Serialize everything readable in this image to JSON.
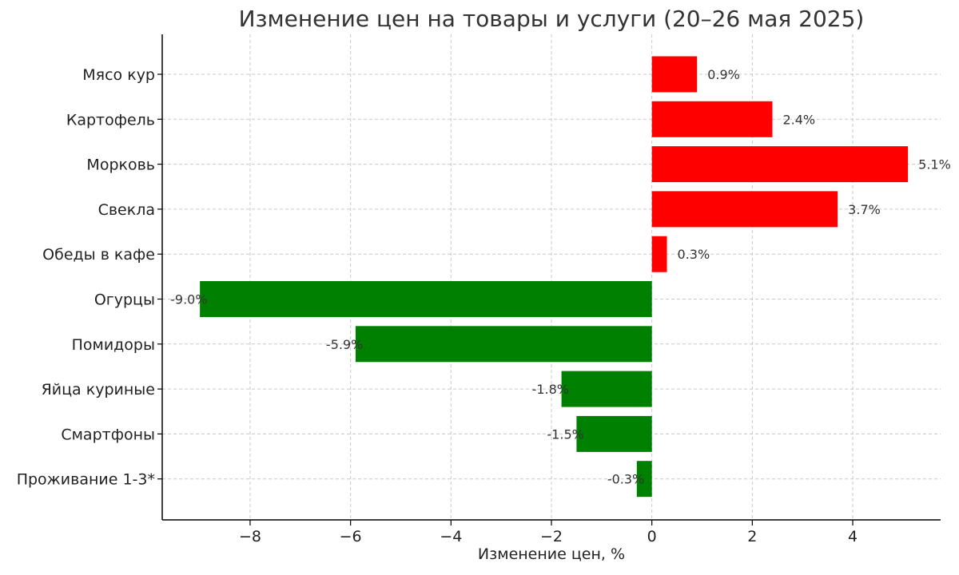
{
  "chart_data": {
    "type": "bar",
    "orientation": "horizontal",
    "title": "Изменение цен на товары и услуги (20–26 мая 2025)",
    "xlabel": "Изменение цен, %",
    "ylabel": "",
    "categories": [
      "Мясо кур",
      "Картофель",
      "Морковь",
      "Свекла",
      "Обеды в кафе",
      "Огурцы",
      "Помидоры",
      "Яйца куриные",
      "Смартфоны",
      "Проживание 1-3*"
    ],
    "values": [
      0.9,
      2.4,
      5.1,
      3.7,
      0.3,
      -9.0,
      -5.9,
      -1.8,
      -1.5,
      -0.3
    ],
    "data_labels": [
      "0.9%",
      "2.4%",
      "5.1%",
      "3.7%",
      "0.3%",
      "-9.0%",
      "-5.9%",
      "-1.8%",
      "-1.5%",
      "-0.3%"
    ],
    "xlim": [
      -9.75,
      5.75
    ],
    "xticks": [
      -8,
      -6,
      -4,
      -2,
      0,
      2,
      4
    ],
    "xtick_labels": [
      "−8",
      "−6",
      "−4",
      "−2",
      "0",
      "2",
      "4"
    ],
    "grid": true,
    "legend": "none",
    "colors": {
      "positive": "#ff0000",
      "negative": "#008000"
    }
  }
}
